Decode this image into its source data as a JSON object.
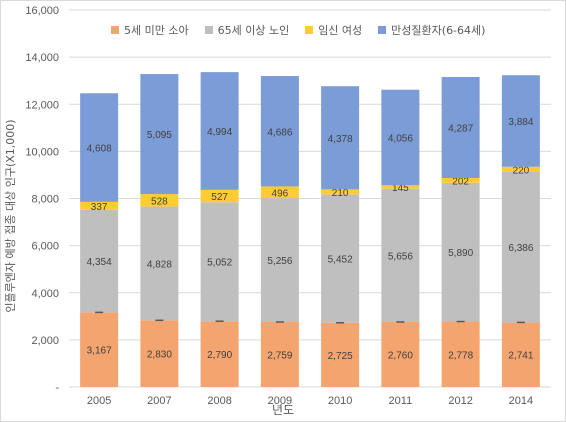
{
  "chart_data": {
    "type": "bar",
    "stacked": true,
    "categories": [
      "2005",
      "2007",
      "2008",
      "2009",
      "2010",
      "2011",
      "2012",
      "2014"
    ],
    "series": [
      {
        "name": "5세 미만 소아",
        "color": "#f4a46f",
        "values": [
          3167,
          2830,
          2790,
          2759,
          2725,
          2760,
          2778,
          2741
        ]
      },
      {
        "name": "65세 이상 노인",
        "color": "#bfbfbf",
        "values": [
          4354,
          4828,
          5052,
          5256,
          5452,
          5656,
          5890,
          6386
        ]
      },
      {
        "name": "임신 여성",
        "color": "#ffcc33",
        "values": [
          337,
          528,
          527,
          496,
          210,
          145,
          202,
          220
        ]
      },
      {
        "name": "만성질환자(6-64세)",
        "color": "#7b9cd6",
        "values": [
          4608,
          5095,
          4994,
          4686,
          4378,
          4056,
          4287,
          3884
        ]
      }
    ],
    "data_labels": [
      [
        "3,167",
        "2,830",
        "2,790",
        "2,759",
        "2,725",
        "2,760",
        "2,778",
        "2,741"
      ],
      [
        "4,354",
        "4,828",
        "5,052",
        "5,256",
        "5,452",
        "5,656",
        "5,890",
        "6,386"
      ],
      [
        "337",
        "528",
        "527",
        "496",
        "210",
        "145",
        "202",
        "220"
      ],
      [
        "4,608",
        "5,095",
        "4,994",
        "4,686",
        "4,378",
        "4,056",
        "4,287",
        "3,884"
      ]
    ],
    "ylim": [
      0,
      16000
    ],
    "yticks": [
      0,
      2000,
      4000,
      6000,
      8000,
      10000,
      12000,
      14000,
      16000
    ],
    "ytick_labels": [
      "-",
      "2,000",
      "4,000",
      "6,000",
      "8,000",
      "10,000",
      "12,000",
      "14,000",
      "16,000"
    ],
    "xlabel": "년도",
    "ylabel": "인플루엔자 예방 접종 대상 인구(X1,000)",
    "grid": true,
    "legend_position": "top"
  }
}
